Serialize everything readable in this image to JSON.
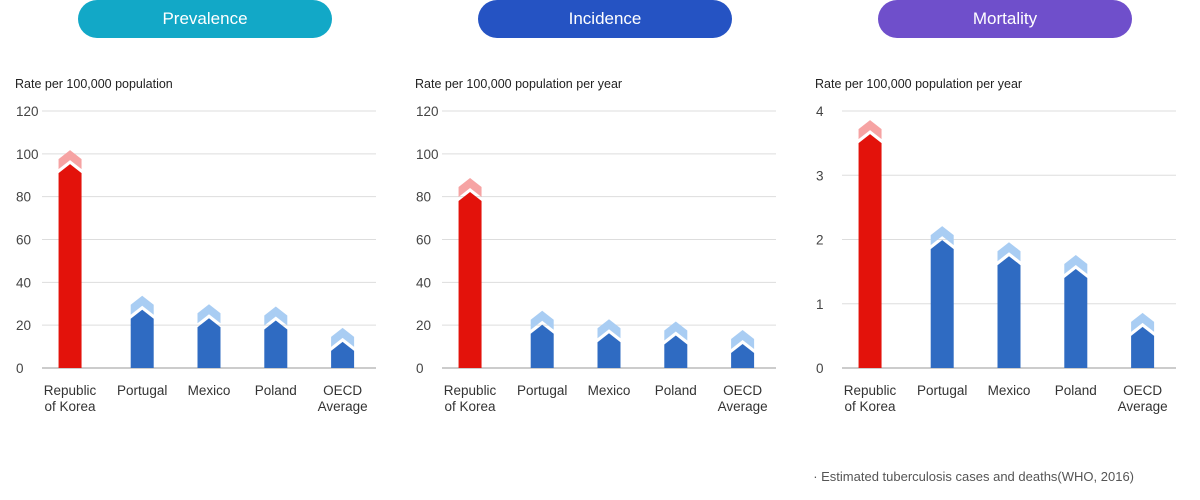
{
  "colors": {
    "highlight_bar": "#e3120b",
    "highlight_cap": "#f6a3a3",
    "bar": "#2f6bc2",
    "cap": "#a9cdf3",
    "grid": "#dddddd",
    "axis": "#999999"
  },
  "panels": [
    {
      "title": "Prevalence",
      "pill_color": "#12a8c7",
      "unit_label": "Rate per 100,000 population"
    },
    {
      "title": "Incidence",
      "pill_color": "#2553c3",
      "unit_label": "Rate per 100,000 population per year"
    },
    {
      "title": "Mortality",
      "pill_color": "#6f4fcb",
      "unit_label": "Rate per 100,000 population per year"
    }
  ],
  "footnote": "· Estimated tuberculosis cases and deaths(WHO, 2016)",
  "chart_data": [
    {
      "type": "bar",
      "title": "Prevalence",
      "ylabel": "Rate per 100,000 population",
      "categories": [
        "Republic of Korea",
        "Portugal",
        "Mexico",
        "Poland",
        "OECD Average"
      ],
      "category_lines": [
        [
          "Republic",
          "of Korea"
        ],
        [
          "Portugal"
        ],
        [
          "Mexico"
        ],
        [
          "Poland"
        ],
        [
          "OECD",
          "Average"
        ]
      ],
      "values": [
        91,
        23,
        19,
        18,
        8
      ],
      "highlight_index": 0,
      "ylim": [
        0,
        120
      ],
      "yticks": [
        0,
        20,
        40,
        60,
        80,
        100,
        120
      ],
      "grid": true
    },
    {
      "type": "bar",
      "title": "Incidence",
      "ylabel": "Rate per 100,000 population per year",
      "categories": [
        "Republic of Korea",
        "Portugal",
        "Mexico",
        "Poland",
        "OECD Average"
      ],
      "category_lines": [
        [
          "Republic",
          "of Korea"
        ],
        [
          "Portugal"
        ],
        [
          "Mexico"
        ],
        [
          "Poland"
        ],
        [
          "OECD",
          "Average"
        ]
      ],
      "values": [
        78,
        16,
        12,
        11,
        7
      ],
      "highlight_index": 0,
      "ylim": [
        0,
        120
      ],
      "yticks": [
        0,
        20,
        40,
        60,
        80,
        100,
        120
      ],
      "grid": true
    },
    {
      "type": "bar",
      "title": "Mortality",
      "ylabel": "Rate per 100,000 population per year",
      "categories": [
        "Republic of Korea",
        "Portugal",
        "Mexico",
        "Poland",
        "OECD Average"
      ],
      "category_lines": [
        [
          "Republic",
          "of Korea"
        ],
        [
          "Portugal"
        ],
        [
          "Mexico"
        ],
        [
          "Poland"
        ],
        [
          "OECD",
          "Average"
        ]
      ],
      "values": [
        3.5,
        1.85,
        1.6,
        1.4,
        0.5
      ],
      "highlight_index": 0,
      "ylim": [
        0,
        4
      ],
      "yticks": [
        0,
        1,
        2,
        3,
        4
      ],
      "grid": true
    }
  ]
}
